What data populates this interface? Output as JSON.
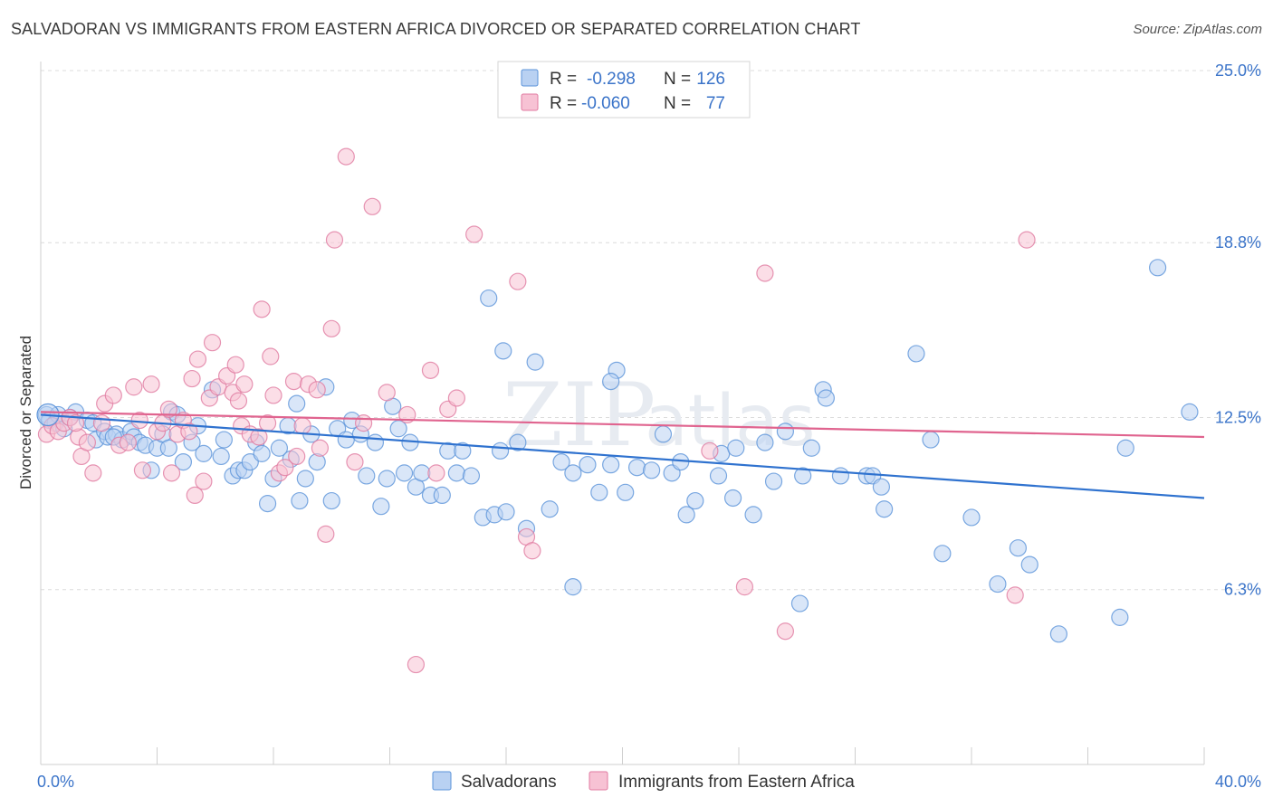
{
  "header": {
    "title": "SALVADORAN VS IMMIGRANTS FROM EASTERN AFRICA DIVORCED OR SEPARATED CORRELATION CHART",
    "source": "Source: ZipAtlas.com"
  },
  "watermark": {
    "main": "ZIP",
    "sub": "atlas"
  },
  "legend": {
    "r_label": "R =",
    "n_label": "N =",
    "rows": [
      {
        "r": "-0.298",
        "n": "126"
      },
      {
        "r": "-0.060",
        "n": "77"
      }
    ]
  },
  "chart_data": {
    "type": "scatter",
    "title": "SALVADORAN VS IMMIGRANTS FROM EASTERN AFRICA DIVORCED OR SEPARATED CORRELATION CHART",
    "xlabel": "",
    "ylabel": "Divorced or Separated",
    "xlim": [
      0,
      40
    ],
    "ylim": [
      0,
      25
    ],
    "x_tick_labels": [
      {
        "value": 0,
        "label": "0.0%"
      },
      {
        "value": 40,
        "label": "40.0%"
      }
    ],
    "y_tick_labels": [
      {
        "value": 25.0,
        "label": "25.0%"
      },
      {
        "value": 18.8,
        "label": "18.8%"
      },
      {
        "value": 12.5,
        "label": "12.5%"
      },
      {
        "value": 6.3,
        "label": "6.3%"
      }
    ],
    "grid": true,
    "legend_position": "top-center",
    "series": [
      {
        "name": "Salvadorans",
        "color": "#5b93d9",
        "fill": "#b9d1f2",
        "r": -0.298,
        "n": 126,
        "trend": {
          "x": [
            0,
            40
          ],
          "y": [
            12.6,
            9.6
          ]
        },
        "points": [
          [
            0.2,
            12.6
          ],
          [
            0.3,
            12.4
          ],
          [
            0.5,
            12.3
          ],
          [
            0.6,
            12.6
          ],
          [
            0.8,
            12.1
          ],
          [
            1.2,
            12.7
          ],
          [
            1.6,
            12.4
          ],
          [
            1.8,
            12.3
          ],
          [
            1.9,
            11.7
          ],
          [
            2.2,
            12.0
          ],
          [
            2.3,
            11.8
          ],
          [
            2.6,
            11.9
          ],
          [
            2.8,
            11.7
          ],
          [
            3.1,
            12.0
          ],
          [
            3.2,
            11.8
          ],
          [
            3.4,
            11.6
          ],
          [
            3.6,
            11.5
          ],
          [
            3.8,
            10.6
          ],
          [
            4.0,
            11.4
          ],
          [
            4.2,
            11.9
          ],
          [
            4.5,
            12.7
          ],
          [
            4.7,
            12.6
          ],
          [
            4.9,
            10.9
          ],
          [
            5.2,
            11.6
          ],
          [
            5.4,
            12.2
          ],
          [
            5.6,
            11.2
          ],
          [
            5.9,
            13.5
          ],
          [
            6.2,
            11.1
          ],
          [
            6.3,
            11.7
          ],
          [
            6.6,
            10.4
          ],
          [
            6.8,
            10.6
          ],
          [
            7.0,
            10.6
          ],
          [
            7.2,
            10.9
          ],
          [
            7.4,
            11.6
          ],
          [
            7.6,
            11.2
          ],
          [
            7.8,
            9.4
          ],
          [
            8.0,
            10.3
          ],
          [
            8.2,
            11.4
          ],
          [
            8.5,
            12.2
          ],
          [
            8.8,
            13.0
          ],
          [
            8.9,
            9.5
          ],
          [
            9.1,
            10.3
          ],
          [
            9.3,
            11.9
          ],
          [
            9.5,
            10.9
          ],
          [
            9.8,
            13.6
          ],
          [
            10.0,
            9.5
          ],
          [
            10.2,
            12.1
          ],
          [
            10.5,
            11.7
          ],
          [
            10.7,
            12.4
          ],
          [
            11.0,
            11.9
          ],
          [
            11.2,
            10.4
          ],
          [
            11.5,
            11.6
          ],
          [
            11.7,
            9.3
          ],
          [
            11.9,
            10.3
          ],
          [
            12.1,
            12.9
          ],
          [
            12.3,
            12.1
          ],
          [
            12.5,
            10.5
          ],
          [
            12.7,
            11.6
          ],
          [
            12.9,
            10.0
          ],
          [
            13.1,
            10.5
          ],
          [
            13.4,
            9.7
          ],
          [
            13.8,
            9.7
          ],
          [
            14.0,
            11.3
          ],
          [
            14.3,
            10.5
          ],
          [
            14.5,
            11.3
          ],
          [
            14.8,
            10.4
          ],
          [
            15.2,
            8.9
          ],
          [
            15.6,
            9.0
          ],
          [
            15.8,
            11.3
          ],
          [
            16.0,
            9.1
          ],
          [
            16.4,
            11.6
          ],
          [
            16.7,
            8.5
          ],
          [
            17.0,
            14.5
          ],
          [
            17.5,
            9.2
          ],
          [
            17.9,
            10.9
          ],
          [
            18.3,
            10.5
          ],
          [
            18.8,
            10.8
          ],
          [
            19.2,
            9.8
          ],
          [
            19.6,
            10.8
          ],
          [
            19.8,
            14.2
          ],
          [
            20.1,
            9.8
          ],
          [
            20.5,
            10.7
          ],
          [
            21.0,
            10.6
          ],
          [
            21.4,
            11.9
          ],
          [
            21.7,
            10.5
          ],
          [
            22.0,
            10.9
          ],
          [
            22.2,
            9.0
          ],
          [
            22.5,
            9.5
          ],
          [
            23.3,
            10.4
          ],
          [
            23.4,
            11.2
          ],
          [
            23.8,
            9.6
          ],
          [
            23.9,
            11.4
          ],
          [
            24.5,
            9.0
          ],
          [
            24.9,
            11.6
          ],
          [
            25.2,
            10.2
          ],
          [
            25.6,
            12.0
          ],
          [
            26.1,
            5.8
          ],
          [
            26.2,
            10.4
          ],
          [
            26.5,
            11.4
          ],
          [
            26.9,
            13.5
          ],
          [
            27.0,
            13.2
          ],
          [
            27.5,
            10.4
          ],
          [
            28.4,
            10.4
          ],
          [
            28.6,
            10.4
          ],
          [
            28.9,
            10.0
          ],
          [
            29.0,
            9.2
          ],
          [
            30.1,
            14.8
          ],
          [
            30.6,
            11.7
          ],
          [
            31.0,
            7.6
          ],
          [
            32.0,
            8.9
          ],
          [
            32.9,
            6.5
          ],
          [
            33.6,
            7.8
          ],
          [
            34.0,
            7.2
          ],
          [
            35.0,
            4.7
          ],
          [
            37.1,
            5.3
          ],
          [
            37.3,
            11.4
          ],
          [
            38.4,
            17.9
          ],
          [
            39.5,
            12.7
          ],
          [
            1.0,
            12.5
          ],
          [
            2.5,
            11.8
          ],
          [
            4.4,
            11.4
          ],
          [
            8.6,
            11.0
          ],
          [
            15.4,
            16.8
          ],
          [
            15.9,
            14.9
          ],
          [
            18.3,
            6.4
          ],
          [
            19.6,
            13.8
          ]
        ]
      },
      {
        "name": "Immigrants from Eastern Africa",
        "color": "#e07aa0",
        "fill": "#f7c2d4",
        "r": -0.06,
        "n": 77,
        "trend": {
          "x": [
            0,
            40
          ],
          "y": [
            12.7,
            11.8
          ]
        },
        "points": [
          [
            0.2,
            11.9
          ],
          [
            0.4,
            12.2
          ],
          [
            0.6,
            12.0
          ],
          [
            0.8,
            12.3
          ],
          [
            1.0,
            12.5
          ],
          [
            1.3,
            11.8
          ],
          [
            1.4,
            11.1
          ],
          [
            1.6,
            11.6
          ],
          [
            1.8,
            10.5
          ],
          [
            2.1,
            12.3
          ],
          [
            2.2,
            13.0
          ],
          [
            2.5,
            13.3
          ],
          [
            2.7,
            11.5
          ],
          [
            3.0,
            11.6
          ],
          [
            3.2,
            13.6
          ],
          [
            3.4,
            12.4
          ],
          [
            3.5,
            10.6
          ],
          [
            3.8,
            13.7
          ],
          [
            4.0,
            12.0
          ],
          [
            4.2,
            12.3
          ],
          [
            4.4,
            12.8
          ],
          [
            4.5,
            10.5
          ],
          [
            4.7,
            11.9
          ],
          [
            4.9,
            12.4
          ],
          [
            5.1,
            12.0
          ],
          [
            5.2,
            13.9
          ],
          [
            5.3,
            9.7
          ],
          [
            5.4,
            14.6
          ],
          [
            5.6,
            10.2
          ],
          [
            5.8,
            13.2
          ],
          [
            5.9,
            15.2
          ],
          [
            6.1,
            13.6
          ],
          [
            6.4,
            14.0
          ],
          [
            6.6,
            13.4
          ],
          [
            6.7,
            14.4
          ],
          [
            6.8,
            13.1
          ],
          [
            6.9,
            12.2
          ],
          [
            7.0,
            13.7
          ],
          [
            7.2,
            11.9
          ],
          [
            7.5,
            11.8
          ],
          [
            7.6,
            16.4
          ],
          [
            7.8,
            12.3
          ],
          [
            7.9,
            14.7
          ],
          [
            8.0,
            13.3
          ],
          [
            8.2,
            10.5
          ],
          [
            8.4,
            10.7
          ],
          [
            8.7,
            13.8
          ],
          [
            8.8,
            11.1
          ],
          [
            9.0,
            12.2
          ],
          [
            9.2,
            13.7
          ],
          [
            9.5,
            13.5
          ],
          [
            9.6,
            11.4
          ],
          [
            9.8,
            8.3
          ],
          [
            10.0,
            15.7
          ],
          [
            10.1,
            18.9
          ],
          [
            10.5,
            21.9
          ],
          [
            10.8,
            10.9
          ],
          [
            11.1,
            12.3
          ],
          [
            11.4,
            20.1
          ],
          [
            11.9,
            13.4
          ],
          [
            12.6,
            12.6
          ],
          [
            12.9,
            3.6
          ],
          [
            13.4,
            14.2
          ],
          [
            13.6,
            10.5
          ],
          [
            14.0,
            12.8
          ],
          [
            14.3,
            13.2
          ],
          [
            14.9,
            19.1
          ],
          [
            16.4,
            17.4
          ],
          [
            16.7,
            8.2
          ],
          [
            16.9,
            7.7
          ],
          [
            23.0,
            11.3
          ],
          [
            24.2,
            6.4
          ],
          [
            24.9,
            17.7
          ],
          [
            25.6,
            4.8
          ],
          [
            33.5,
            6.1
          ],
          [
            33.9,
            18.9
          ],
          [
            1.2,
            12.3
          ]
        ]
      }
    ]
  }
}
